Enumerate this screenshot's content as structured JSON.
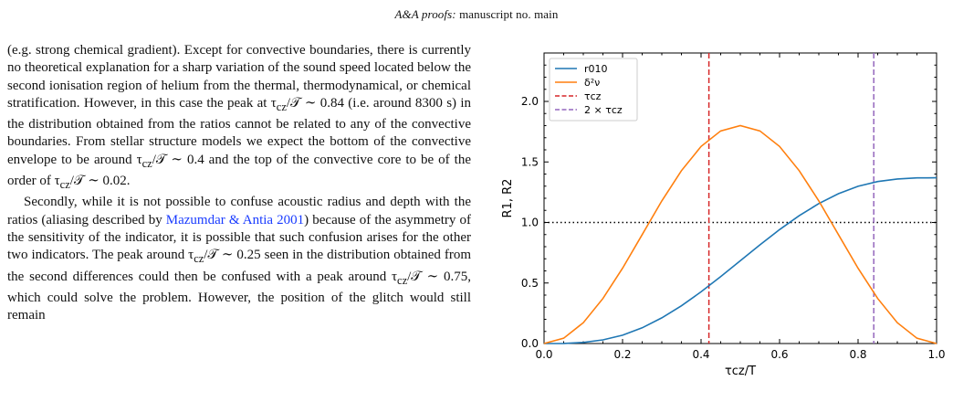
{
  "header": {
    "journal": "A&A proofs:",
    "manuscript": "manuscript no. main"
  },
  "text": {
    "p1_a": "(e.g. strong chemical gradient). Except for convective boundaries, there is currently no theoretical explanation for a sharp variation of the sound speed located below the second ionisation region of helium from the thermal, thermodynamical, or chemical stratification. However, in this case the peak at τ",
    "p1_sub1": "cz",
    "p1_b": "/𝒯 ∼ 0.84 (i.e. around 8300 s) in the distribution obtained from the ratios cannot be related to any of the convective boundaries. From stellar structure models we expect the bottom of the convective envelope to be around τ",
    "p1_sub2": "cz",
    "p1_c": "/𝒯 ∼ 0.4 and the top of the convective core to be of the order of τ",
    "p1_sub3": "cz",
    "p1_d": "/𝒯 ∼ 0.02.",
    "p2_a": "Secondly, while it is not possible to confuse acoustic radius and depth with the ratios (aliasing described by ",
    "p2_cite": "Mazumdar & Antia 2001",
    "p2_b": ") because of the asymmetry of the sensitivity of the indicator, it is possible that such confusion arises for the other two indicators. The peak around τ",
    "p2_sub1": "cz",
    "p2_c": "/𝒯 ∼ 0.25 seen in the distribution obtained from the second differences could then be confused with a peak around τ",
    "p2_sub2": "cz",
    "p2_d": "/𝒯 ∼ 0.75, which could solve the problem. However, the position of the glitch would still remain"
  },
  "chart_data": {
    "type": "line",
    "xlabel": "τcz/T",
    "ylabel": "R1, R2",
    "xlim": [
      0.0,
      1.0
    ],
    "ylim": [
      0.0,
      2.4
    ],
    "x_ticks": [
      "0.0",
      "0.2",
      "0.4",
      "0.6",
      "0.8",
      "1.0"
    ],
    "y_ticks": [
      "0.0",
      "0.5",
      "1.0",
      "1.5",
      "2.0"
    ],
    "legend_position": "top-left",
    "series": [
      {
        "name": "r010",
        "color": "#1f77b4",
        "x": [
          0.0,
          0.05,
          0.1,
          0.15,
          0.2,
          0.25,
          0.3,
          0.35,
          0.4,
          0.45,
          0.5,
          0.55,
          0.6,
          0.65,
          0.7,
          0.75,
          0.8,
          0.85,
          0.9,
          0.95,
          1.0
        ],
        "y": [
          0.0,
          0.001,
          0.009,
          0.03,
          0.069,
          0.13,
          0.212,
          0.312,
          0.427,
          0.553,
          0.684,
          0.815,
          0.941,
          1.056,
          1.156,
          1.238,
          1.299,
          1.338,
          1.359,
          1.368,
          1.369
        ]
      },
      {
        "name": "δ²ν",
        "color": "#ff7f0e",
        "x": [
          0.0,
          0.05,
          0.1,
          0.15,
          0.2,
          0.25,
          0.3,
          0.35,
          0.4,
          0.45,
          0.5,
          0.55,
          0.6,
          0.65,
          0.7,
          0.75,
          0.8,
          0.85,
          0.9,
          0.95,
          1.0
        ],
        "y": [
          0.0,
          0.044,
          0.172,
          0.372,
          0.622,
          0.9,
          1.178,
          1.428,
          1.628,
          1.756,
          1.8,
          1.756,
          1.628,
          1.428,
          1.178,
          0.9,
          0.622,
          0.372,
          0.172,
          0.044,
          0.0
        ]
      }
    ],
    "vlines": [
      {
        "name": "τcz",
        "x": 0.42,
        "color": "#d62728"
      },
      {
        "name": "2 × τcz",
        "x": 0.84,
        "color": "#9467bd"
      }
    ],
    "hline": {
      "y": 1.0,
      "color": "#000000"
    }
  }
}
